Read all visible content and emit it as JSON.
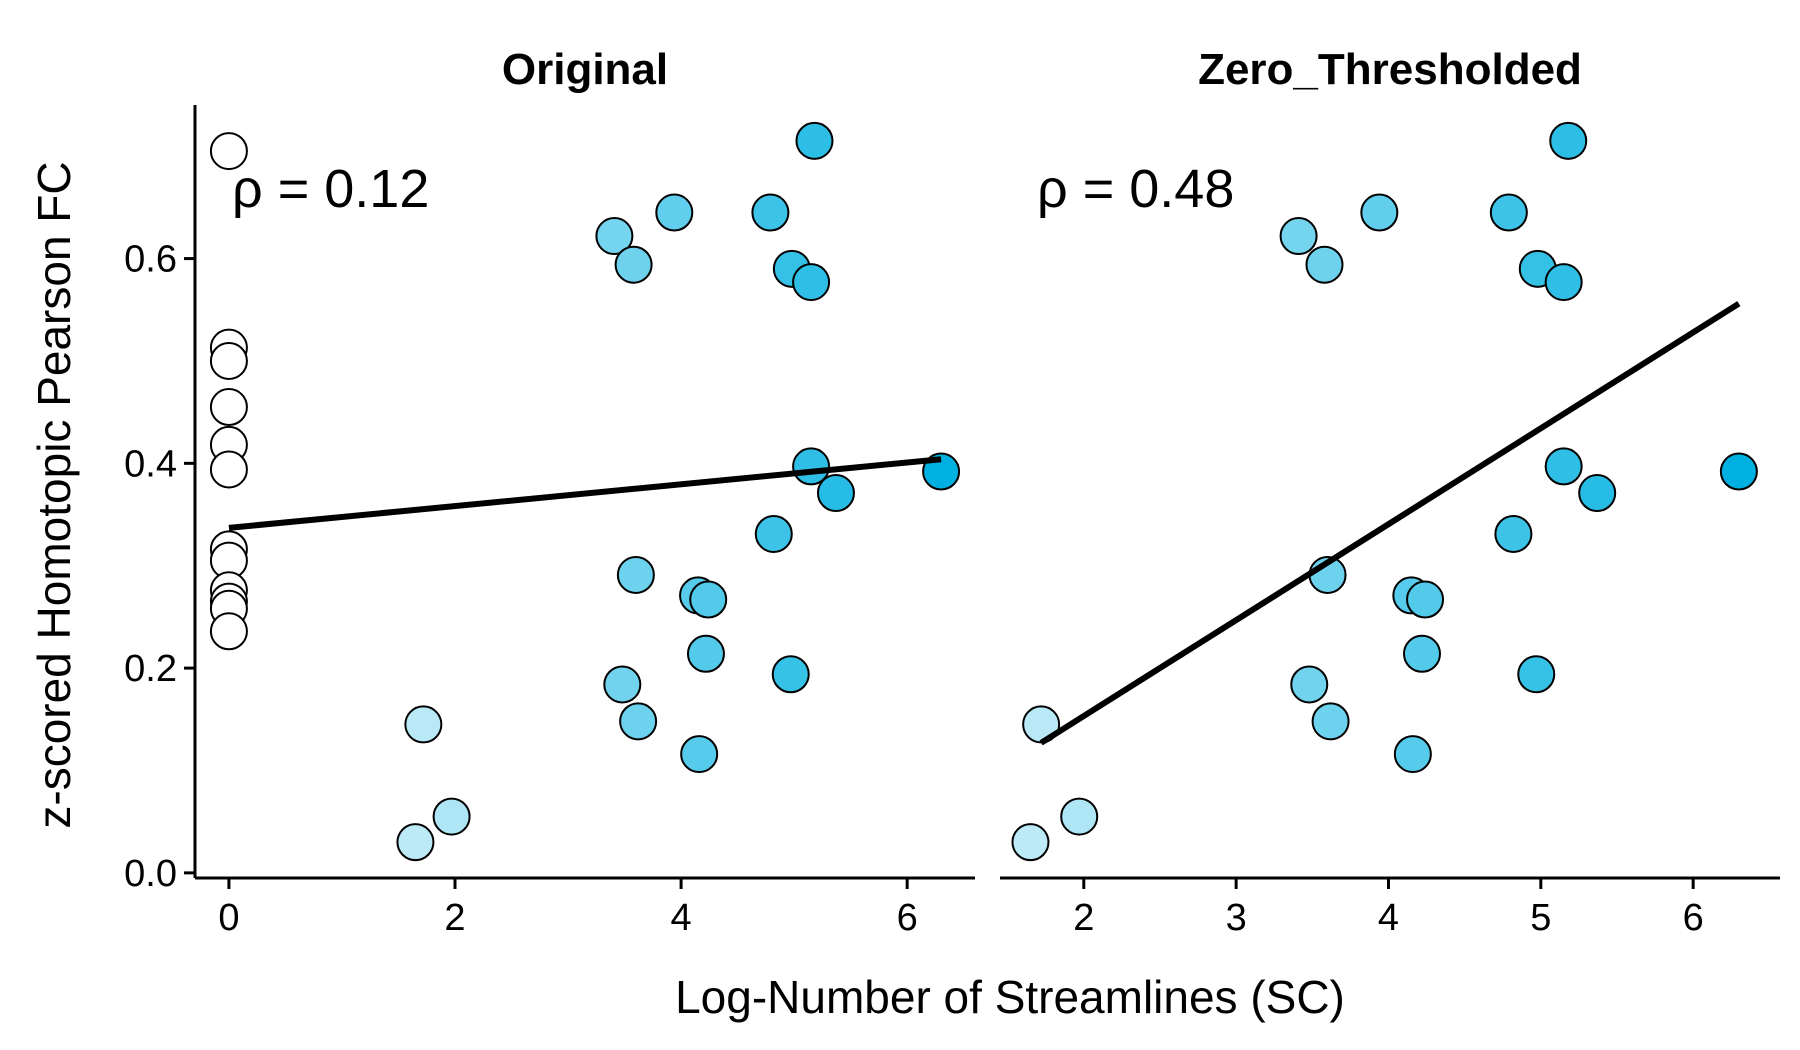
{
  "chart_data": {
    "type": "scatter",
    "ylabel": "z-scored Homotopic Pearson FC",
    "xlabel": "Log-Number of Streamlines (SC)",
    "y_ticks": [
      "0.0",
      "0.2",
      "0.4",
      "0.6"
    ],
    "ylim": [
      -0.005,
      0.75
    ],
    "color_scale": {
      "low": "#ffffff",
      "high": "#00b0e0",
      "min": 0,
      "max": 6.3
    },
    "grid": false,
    "panels": [
      {
        "title": "Original",
        "annotation": "ρ = 0.12",
        "xlim": [
          -0.3,
          6.6
        ],
        "x_ticks": [
          "0",
          "2",
          "4",
          "6"
        ],
        "fit_line": {
          "x": [
            0,
            6.3
          ],
          "y": [
            0.337,
            0.404
          ]
        },
        "points": [
          {
            "x": 0,
            "y": 0.705
          },
          {
            "x": 0,
            "y": 0.513
          },
          {
            "x": 0,
            "y": 0.5
          },
          {
            "x": 0,
            "y": 0.455
          },
          {
            "x": 0,
            "y": 0.418
          },
          {
            "x": 0,
            "y": 0.394
          },
          {
            "x": 0,
            "y": 0.316
          },
          {
            "x": 0,
            "y": 0.305
          },
          {
            "x": 0,
            "y": 0.276
          },
          {
            "x": 0,
            "y": 0.265
          },
          {
            "x": 0,
            "y": 0.258
          },
          {
            "x": 0,
            "y": 0.236
          },
          {
            "x": 1.72,
            "y": 0.145
          },
          {
            "x": 1.97,
            "y": 0.055
          },
          {
            "x": 1.65,
            "y": 0.03
          },
          {
            "x": 3.41,
            "y": 0.622
          },
          {
            "x": 3.58,
            "y": 0.594
          },
          {
            "x": 3.94,
            "y": 0.645
          },
          {
            "x": 4.79,
            "y": 0.645
          },
          {
            "x": 5.18,
            "y": 0.715
          },
          {
            "x": 4.98,
            "y": 0.59
          },
          {
            "x": 5.15,
            "y": 0.577
          },
          {
            "x": 5.15,
            "y": 0.397
          },
          {
            "x": 5.37,
            "y": 0.371
          },
          {
            "x": 6.3,
            "y": 0.392
          },
          {
            "x": 4.82,
            "y": 0.331
          },
          {
            "x": 3.6,
            "y": 0.291
          },
          {
            "x": 4.15,
            "y": 0.271
          },
          {
            "x": 4.24,
            "y": 0.267
          },
          {
            "x": 4.22,
            "y": 0.214
          },
          {
            "x": 3.48,
            "y": 0.184
          },
          {
            "x": 3.62,
            "y": 0.148
          },
          {
            "x": 4.97,
            "y": 0.194
          },
          {
            "x": 4.16,
            "y": 0.116
          }
        ]
      },
      {
        "title": "Zero_Thresholded",
        "annotation": "ρ = 0.48",
        "xlim": [
          1.45,
          6.57
        ],
        "x_ticks": [
          "2",
          "3",
          "4",
          "5",
          "6"
        ],
        "fit_line": {
          "x": [
            1.72,
            6.3
          ],
          "y": [
            0.127,
            0.556
          ]
        },
        "points": [
          {
            "x": 1.72,
            "y": 0.145
          },
          {
            "x": 1.97,
            "y": 0.055
          },
          {
            "x": 1.65,
            "y": 0.03
          },
          {
            "x": 3.41,
            "y": 0.622
          },
          {
            "x": 3.58,
            "y": 0.594
          },
          {
            "x": 3.94,
            "y": 0.645
          },
          {
            "x": 4.79,
            "y": 0.645
          },
          {
            "x": 5.18,
            "y": 0.715
          },
          {
            "x": 4.98,
            "y": 0.59
          },
          {
            "x": 5.15,
            "y": 0.577
          },
          {
            "x": 5.15,
            "y": 0.397
          },
          {
            "x": 5.37,
            "y": 0.371
          },
          {
            "x": 6.3,
            "y": 0.392
          },
          {
            "x": 4.82,
            "y": 0.331
          },
          {
            "x": 3.6,
            "y": 0.291
          },
          {
            "x": 4.15,
            "y": 0.271
          },
          {
            "x": 4.24,
            "y": 0.267
          },
          {
            "x": 4.22,
            "y": 0.214
          },
          {
            "x": 3.48,
            "y": 0.184
          },
          {
            "x": 3.62,
            "y": 0.148
          },
          {
            "x": 4.97,
            "y": 0.194
          },
          {
            "x": 4.16,
            "y": 0.116
          }
        ]
      }
    ]
  }
}
